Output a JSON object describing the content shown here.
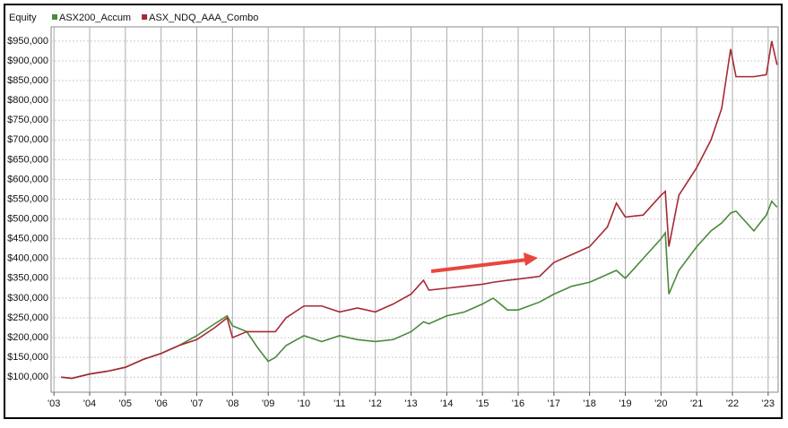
{
  "chart_data": {
    "type": "line",
    "y_label": "Equity",
    "x": [
      2003.2,
      2003.5,
      2004,
      2004.5,
      2005,
      2005.5,
      2006,
      2006.5,
      2007,
      2007.5,
      2007.85,
      2008,
      2008.4,
      2008.7,
      2009,
      2009.2,
      2009.5,
      2010,
      2010.5,
      2011,
      2011.5,
      2012,
      2012.5,
      2013,
      2013.35,
      2013.5,
      2014,
      2014.5,
      2015,
      2015.3,
      2015.7,
      2016,
      2016.6,
      2017,
      2017.5,
      2018,
      2018.5,
      2018.75,
      2019,
      2019.5,
      2020,
      2020.12,
      2020.22,
      2020.5,
      2021,
      2021.4,
      2021.7,
      2021.95,
      2022.1,
      2022.6,
      2022.95,
      2023.1,
      2023.25
    ],
    "series": [
      {
        "name": "ASX200_Accum",
        "color": "#4a8a3a",
        "values": [
          100000,
          97000,
          108000,
          115000,
          125000,
          145000,
          160000,
          180000,
          205000,
          235000,
          255000,
          230000,
          215000,
          175000,
          140000,
          150000,
          180000,
          205000,
          190000,
          205000,
          195000,
          190000,
          195000,
          215000,
          240000,
          235000,
          255000,
          265000,
          285000,
          300000,
          270000,
          270000,
          290000,
          310000,
          330000,
          340000,
          360000,
          370000,
          350000,
          400000,
          450000,
          465000,
          310000,
          370000,
          430000,
          470000,
          490000,
          515000,
          520000,
          470000,
          510000,
          545000,
          530000
        ]
      },
      {
        "name": "ASX_NDQ_AAA_Combo",
        "color": "#a52a35",
        "values": [
          100000,
          97000,
          108000,
          115000,
          125000,
          145000,
          160000,
          180000,
          195000,
          225000,
          250000,
          200000,
          215000,
          215000,
          215000,
          215000,
          250000,
          280000,
          280000,
          265000,
          275000,
          265000,
          285000,
          310000,
          345000,
          320000,
          325000,
          330000,
          335000,
          340000,
          345000,
          348000,
          355000,
          390000,
          410000,
          430000,
          480000,
          540000,
          505000,
          510000,
          560000,
          570000,
          430000,
          560000,
          630000,
          700000,
          780000,
          930000,
          860000,
          860000,
          865000,
          950000,
          890000
        ]
      }
    ],
    "xlim": [
      2002.92,
      2023.28
    ],
    "xticks": [
      {
        "value": 2003,
        "label": "'03"
      },
      {
        "value": 2004,
        "label": "'04"
      },
      {
        "value": 2005,
        "label": "'05"
      },
      {
        "value": 2006,
        "label": "'06"
      },
      {
        "value": 2007,
        "label": "'07"
      },
      {
        "value": 2008,
        "label": "'08"
      },
      {
        "value": 2009,
        "label": "'09"
      },
      {
        "value": 2010,
        "label": "'10"
      },
      {
        "value": 2011,
        "label": "'11"
      },
      {
        "value": 2012,
        "label": "'12"
      },
      {
        "value": 2013,
        "label": "'13"
      },
      {
        "value": 2014,
        "label": "'14"
      },
      {
        "value": 2015,
        "label": "'15"
      },
      {
        "value": 2016,
        "label": "'16"
      },
      {
        "value": 2017,
        "label": "'17"
      },
      {
        "value": 2018,
        "label": "'18"
      },
      {
        "value": 2019,
        "label": "'19"
      },
      {
        "value": 2020,
        "label": "'20"
      },
      {
        "value": 2021,
        "label": "'21"
      },
      {
        "value": 2022,
        "label": "'22"
      },
      {
        "value": 2023,
        "label": "'23"
      }
    ],
    "ylim": [
      62000,
      986000
    ],
    "yticks": [
      {
        "value": 100000,
        "label": "$100,000"
      },
      {
        "value": 150000,
        "label": "$150,000"
      },
      {
        "value": 200000,
        "label": "$200,000"
      },
      {
        "value": 250000,
        "label": "$250,000"
      },
      {
        "value": 300000,
        "label": "$300,000"
      },
      {
        "value": 350000,
        "label": "$350,000"
      },
      {
        "value": 400000,
        "label": "$400,000"
      },
      {
        "value": 450000,
        "label": "$450,000"
      },
      {
        "value": 500000,
        "label": "$500,000"
      },
      {
        "value": 550000,
        "label": "$550,000"
      },
      {
        "value": 600000,
        "label": "$600,000"
      },
      {
        "value": 650000,
        "label": "$650,000"
      },
      {
        "value": 700000,
        "label": "$700,000"
      },
      {
        "value": 750000,
        "label": "$750,000"
      },
      {
        "value": 800000,
        "label": "$800,000"
      },
      {
        "value": 850000,
        "label": "$850,000"
      },
      {
        "value": 900000,
        "label": "$900,000"
      },
      {
        "value": 950000,
        "label": "$950,000"
      }
    ],
    "grid": true
  }
}
